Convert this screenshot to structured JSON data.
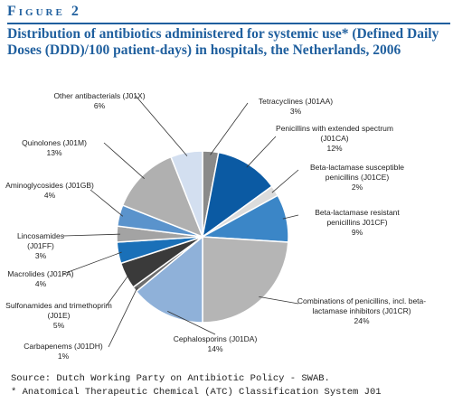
{
  "chart_data": {
    "type": "pie",
    "figure_label": "Figure 2",
    "title": "Distribution of antibiotics administered for systemic use* (Defined Daily Doses (DDD)/100 patient-days) in hospitals, the Netherlands, 2006",
    "categories": [
      "Tetracyclines (J01AA)",
      "Penicillins with extended spectrum (J01CA)",
      "Beta-lactamase susceptible penicillins (J01CE)",
      "Beta-lactamase resistant penicillins J01CF)",
      "Combinations of penicillins, incl. beta-lactamase inhibitors (J01CR)",
      "Cephalosporins (J01DA)",
      "Carbapenems (J01DH)",
      "Sulfonamides and trimethoprim (J01E)",
      "Macrolides (J01FA)",
      "Lincosamides (J01FF)",
      "Aminoglycosides (J01GB)",
      "Quinolones (J01M)",
      "Other antibacterials (J01X)"
    ],
    "values": [
      3,
      12,
      2,
      9,
      24,
      14,
      1,
      5,
      4,
      3,
      4,
      13,
      6
    ],
    "value_labels": [
      "3%",
      "12%",
      "2%",
      "9%",
      "24%",
      "14%",
      "1%",
      "5%",
      "4%",
      "3%",
      "4%",
      "13%",
      "6%"
    ],
    "colors": [
      "#8a8a8a",
      "#0b5aa3",
      "#dcdcdc",
      "#3b86c7",
      "#b5b5b5",
      "#8fb1d9",
      "#6e6e6e",
      "#3a3a3a",
      "#1a70b8",
      "#a3a3a3",
      "#5a93cc",
      "#b0b0b0",
      "#d3dff0"
    ],
    "notes": [
      "Source: Dutch Working Party on Antibiotic Policy - SWAB.",
      "* Anatomical Therapeutic Chemical (ATC) Classification System J01"
    ]
  }
}
